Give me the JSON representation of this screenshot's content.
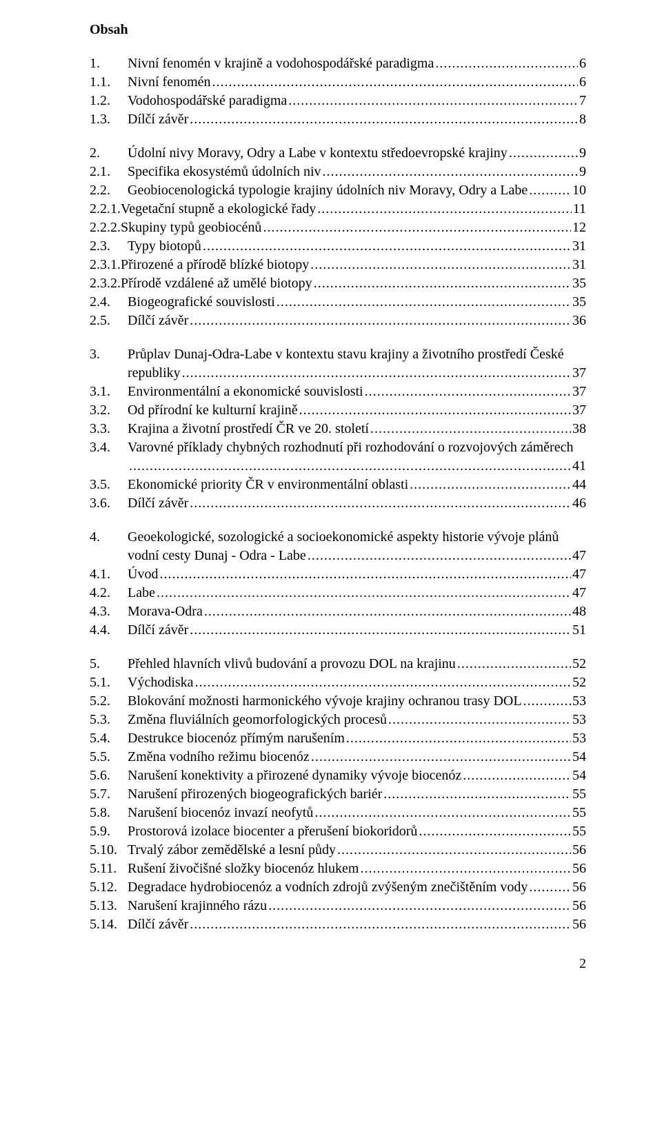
{
  "heading": "Obsah",
  "page_number": "2",
  "style": {
    "font_family": "Times New Roman",
    "font_size_pt": 15,
    "text_color": "#000000",
    "background_color": "#ffffff",
    "leader_char": "."
  },
  "sections": [
    {
      "entries": [
        {
          "num": "1.",
          "text": "Nivní fenomén v krajině a vodohospodářské paradigma",
          "page": "6"
        },
        {
          "num": "1.1.",
          "text": "Nivní fenomén",
          "page": "6"
        },
        {
          "num": "1.2.",
          "text": "Vodohospodářské paradigma",
          "page": "7"
        },
        {
          "num": "1.3.",
          "text": "Dílčí závěr",
          "page": "8"
        }
      ]
    },
    {
      "entries": [
        {
          "num": "2.",
          "text": "Údolní nivy Moravy, Odry a Labe v kontextu středoevropské krajiny",
          "page": "9"
        },
        {
          "num": "2.1.",
          "text": "Specifika ekosystémů údolních niv",
          "page": "9"
        },
        {
          "num": "2.2.",
          "text": "Geobiocenologická typologie krajiny údolních niv Moravy, Odry a Labe",
          "page": "10"
        },
        {
          "num": "2.2.1.",
          "text": "Vegetační stupně a ekologické řady",
          "page": "11",
          "tight": true
        },
        {
          "num": "2.2.2.",
          "text": "Skupiny typů geobiocénů",
          "page": "12",
          "tight": true
        },
        {
          "num": "2.3.",
          "text": "Typy biotopů",
          "page": "31"
        },
        {
          "num": "2.3.1.",
          "text": "Přirozené a přírodě blízké biotopy",
          "page": "31",
          "tight": true
        },
        {
          "num": "2.3.2.",
          "text": "Přírodě vzdálené až umělé biotopy",
          "page": "35",
          "tight": true
        },
        {
          "num": "2.4.",
          "text": "Biogeografické souvislosti",
          "page": "35"
        },
        {
          "num": "2.5.",
          "text": "Dílčí závěr",
          "page": "36"
        }
      ]
    },
    {
      "entries": [
        {
          "num": "3.",
          "text_lines": [
            "Průplav Dunaj-Odra-Labe v kontextu stavu krajiny a životního prostředí České",
            "republiky"
          ],
          "page": "37"
        },
        {
          "num": "3.1.",
          "text": "Environmentální a ekonomické souvislosti",
          "page": "37"
        },
        {
          "num": "3.2.",
          "text": "Od přírodní ke kulturní krajině",
          "page": "37"
        },
        {
          "num": "3.3.",
          "text": "Krajina a životní prostředí ČR ve 20. století",
          "page": "38"
        },
        {
          "num": "3.4.",
          "text_lines": [
            "Varovné příklady chybných rozhodnutí při rozhodování o rozvojových záměrech",
            ""
          ],
          "page": "41"
        },
        {
          "num": "3.5.",
          "text": "Ekonomické priority ČR v environmentální oblasti",
          "page": "44"
        },
        {
          "num": "3.6.",
          "text": "Dílčí závěr",
          "page": "46"
        }
      ]
    },
    {
      "entries": [
        {
          "num": "4.",
          "text_lines": [
            "Geoekologické, sozologické a socioekonomické aspekty historie vývoje plánů",
            "vodní cesty Dunaj - Odra - Labe"
          ],
          "page": "47"
        },
        {
          "num": "4.1.",
          "text": "Úvod",
          "page": "47"
        },
        {
          "num": "4.2.",
          "text": "Labe",
          "page": "47"
        },
        {
          "num": "4.3.",
          "text": "Morava-Odra",
          "page": "48"
        },
        {
          "num": "4.4.",
          "text": "Dílčí závěr",
          "page": "51"
        }
      ]
    },
    {
      "entries": [
        {
          "num": "5.",
          "text": "Přehled hlavních vlivů budování a provozu DOL na krajinu",
          "page": "52"
        },
        {
          "num": "5.1.",
          "text": "Východiska",
          "page": "52"
        },
        {
          "num": "5.2.",
          "text": "Blokování možnosti harmonického vývoje krajiny ochranou trasy DOL",
          "page": "53"
        },
        {
          "num": "5.3.",
          "text": "Změna fluviálních geomorfologických procesů",
          "page": "53"
        },
        {
          "num": "5.4.",
          "text": "Destrukce biocenóz přímým narušením",
          "page": "53"
        },
        {
          "num": "5.5.",
          "text": "Změna vodního režimu biocenóz",
          "page": "54"
        },
        {
          "num": "5.6.",
          "text": "Narušení konektivity a přirozené dynamiky vývoje biocenóz",
          "page": "54"
        },
        {
          "num": "5.7.",
          "text": "Narušení přirozených biogeografických bariér",
          "page": "55"
        },
        {
          "num": "5.8.",
          "text": "Narušení biocenóz invazí neofytů",
          "page": "55"
        },
        {
          "num": "5.9.",
          "text": "Prostorová izolace biocenter a přerušení biokoridorů",
          "page": "55"
        },
        {
          "num": "5.10.",
          "text": "Trvalý zábor zemědělské a lesní půdy",
          "page": "56"
        },
        {
          "num": "5.11.",
          "text": "Rušení živočišné složky biocenóz hlukem",
          "page": "56"
        },
        {
          "num": "5.12.",
          "text": "Degradace hydrobiocenóz a vodních zdrojů zvýšeným znečištěním vody",
          "page": "56"
        },
        {
          "num": "5.13.",
          "text": "Narušení krajinného rázu",
          "page": "56"
        },
        {
          "num": "5.14.",
          "text": "Dílčí závěr",
          "page": "56"
        }
      ]
    }
  ]
}
